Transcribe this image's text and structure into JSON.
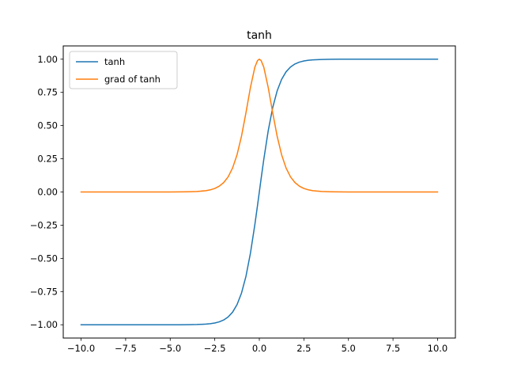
{
  "chart_data": {
    "type": "line",
    "title": "tanh",
    "xlabel": "",
    "ylabel": "",
    "xlim": [
      -11.0,
      11.0
    ],
    "ylim": [
      -1.1,
      1.1
    ],
    "x_ticks": [
      -10.0,
      -7.5,
      -5.0,
      -2.5,
      0.0,
      2.5,
      5.0,
      7.5,
      10.0
    ],
    "x_tick_labels": [
      "−10.0",
      "−7.5",
      "−5.0",
      "−2.5",
      "0.0",
      "2.5",
      "5.0",
      "7.5",
      "10.0"
    ],
    "y_ticks": [
      -1.0,
      -0.75,
      -0.5,
      -0.25,
      0.0,
      0.25,
      0.5,
      0.75,
      1.0
    ],
    "y_tick_labels": [
      "−1.00",
      "−0.75",
      "−0.50",
      "−0.25",
      "0.00",
      "0.25",
      "0.50",
      "0.75",
      "1.00"
    ],
    "grid": false,
    "legend_position": "top-left",
    "x": [
      -10.0,
      -9.0,
      -8.0,
      -7.0,
      -6.0,
      -5.0,
      -4.5,
      -4.0,
      -3.5,
      -3.0,
      -2.75,
      -2.5,
      -2.25,
      -2.0,
      -1.75,
      -1.5,
      -1.25,
      -1.0,
      -0.75,
      -0.5,
      -0.25,
      -0.1,
      0.0,
      0.1,
      0.25,
      0.5,
      0.75,
      1.0,
      1.25,
      1.5,
      1.75,
      2.0,
      2.25,
      2.5,
      2.75,
      3.0,
      3.5,
      4.0,
      4.5,
      5.0,
      6.0,
      7.0,
      8.0,
      9.0,
      10.0
    ],
    "series": [
      {
        "name": "tanh",
        "color": "#1f77b4",
        "values": [
          -1.0,
          -1.0,
          -1.0,
          -1.0,
          -1.0,
          -0.9999,
          -0.9998,
          -0.9993,
          -0.9982,
          -0.9951,
          -0.9919,
          -0.9866,
          -0.978,
          -0.964,
          -0.9414,
          -0.9051,
          -0.8483,
          -0.7616,
          -0.6351,
          -0.4621,
          -0.2449,
          -0.0997,
          0.0,
          0.0997,
          0.2449,
          0.4621,
          0.6351,
          0.7616,
          0.8483,
          0.9051,
          0.9414,
          0.964,
          0.978,
          0.9866,
          0.9919,
          0.9951,
          0.9982,
          0.9993,
          0.9998,
          0.9999,
          1.0,
          1.0,
          1.0,
          1.0,
          1.0
        ]
      },
      {
        "name": "grad of tanh",
        "color": "#ff7f0e",
        "values": [
          0.0,
          0.0,
          0.0,
          0.0,
          0.0,
          0.0002,
          0.0005,
          0.0013,
          0.0036,
          0.0099,
          0.0162,
          0.0266,
          0.0434,
          0.0707,
          0.1138,
          0.1807,
          0.2804,
          0.42,
          0.5966,
          0.7864,
          0.94,
          0.99,
          1.0,
          0.99,
          0.94,
          0.7864,
          0.5966,
          0.42,
          0.2804,
          0.1807,
          0.1138,
          0.0707,
          0.0434,
          0.0266,
          0.0162,
          0.0099,
          0.0036,
          0.0013,
          0.0005,
          0.0002,
          0.0,
          0.0,
          0.0,
          0.0,
          0.0
        ]
      }
    ]
  }
}
